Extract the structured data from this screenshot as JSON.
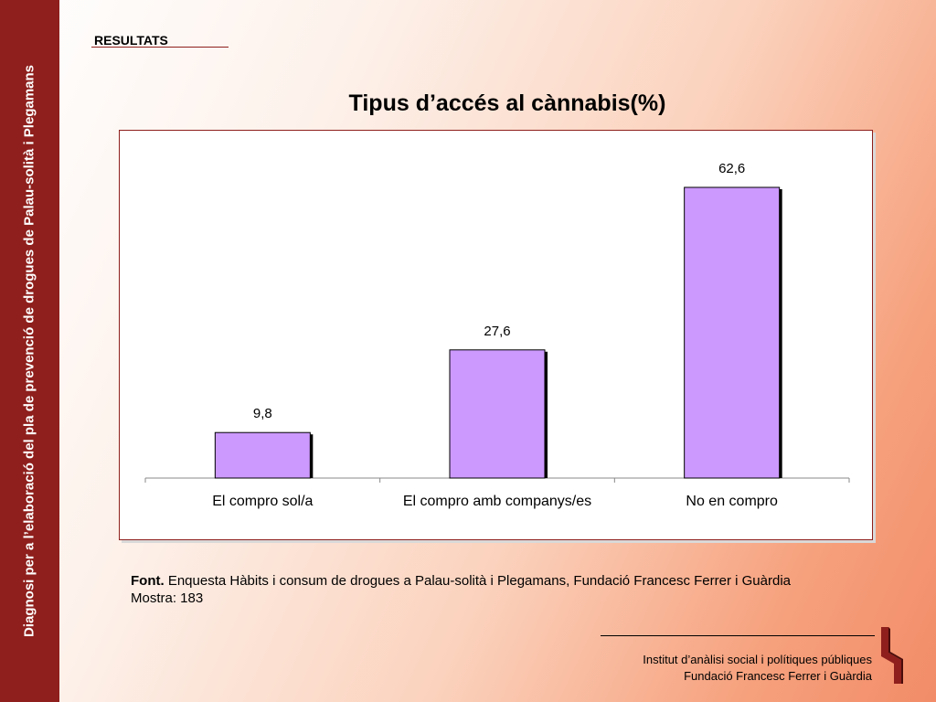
{
  "sidebar": {
    "text": "Diagnosi per a l’elaboració del pla de prevenció de drogues de Palau-solità i Plegamans"
  },
  "section_label": "RESULTATS",
  "chart_data": {
    "type": "bar",
    "title": "Tipus d’accés al cànnabis(%)",
    "categories": [
      "El compro sol/a",
      "El compro amb companys/es",
      "No en compro"
    ],
    "values": [
      9.8,
      27.6,
      62.6
    ],
    "value_labels": [
      "9,8",
      "27,6",
      "62,6"
    ],
    "xlabel": "",
    "ylabel": "",
    "ylim": [
      0,
      70
    ],
    "grid": false,
    "legend": "none",
    "bar_color": "#cc99ff"
  },
  "source": {
    "label": "Font.",
    "text": "Enquesta Hàbits i consum de drogues a Palau-solità i Plegamans, Fundació Francesc Ferrer i Guàrdia",
    "sample": "Mostra: 183"
  },
  "footer": {
    "line1": "Institut d’anàlisi social i polítiques públiques",
    "line2": "Fundació Francesc Ferrer i Guàrdia"
  },
  "colors": {
    "brand": "#8e1f1c",
    "bar": "#cc99ff"
  }
}
